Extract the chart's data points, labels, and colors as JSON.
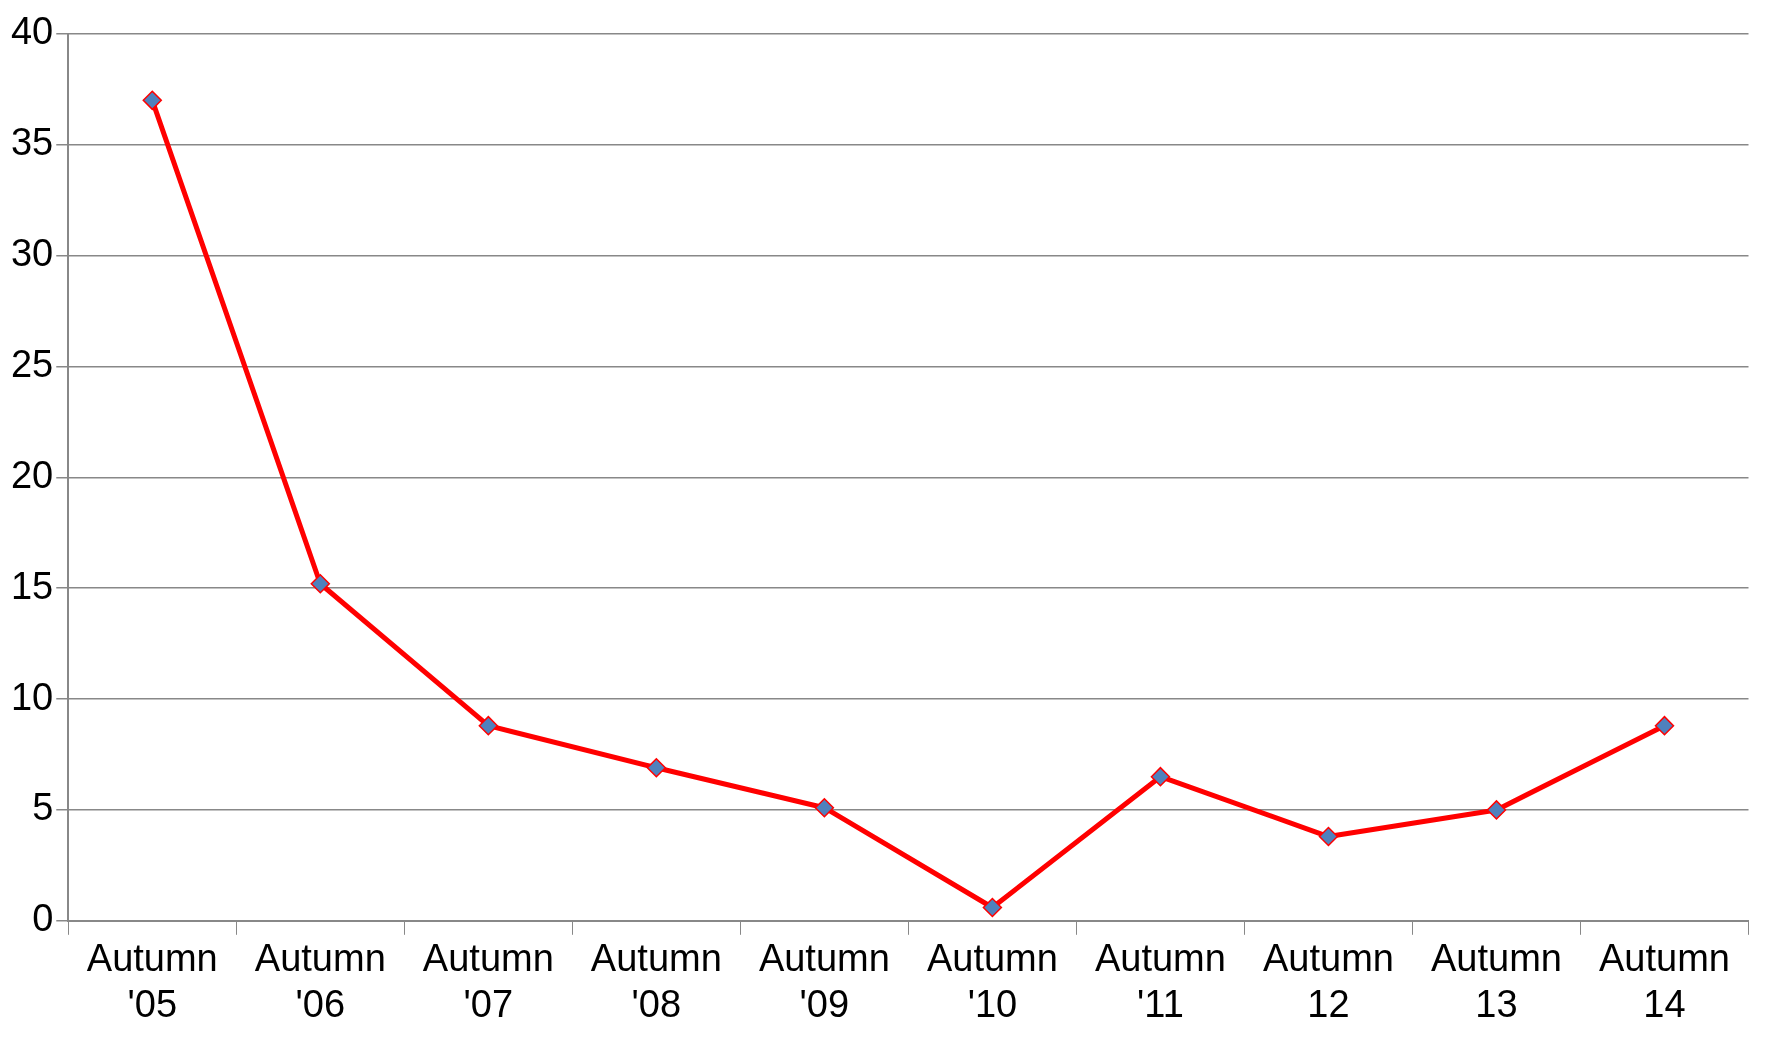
{
  "chart_data": {
    "type": "line",
    "categories": [
      "Autumn '05",
      "Autumn '06",
      "Autumn '07",
      "Autumn '08",
      "Autumn '09",
      "Autumn '10",
      "Autumn '11",
      "Autumn 12",
      "Autumn 13",
      "Autumn 14"
    ],
    "series": [
      {
        "color": "#ff0000",
        "values": [
          37,
          15.2,
          8.8,
          6.9,
          5.1,
          0.6,
          6.5,
          3.8,
          5,
          8.8
        ]
      }
    ],
    "ylim": [
      0,
      40
    ],
    "yticks": [
      0,
      5,
      10,
      15,
      20,
      25,
      30,
      35,
      40
    ],
    "grid": "y",
    "legend": false,
    "marker": "diamond",
    "line_style": "solid"
  }
}
